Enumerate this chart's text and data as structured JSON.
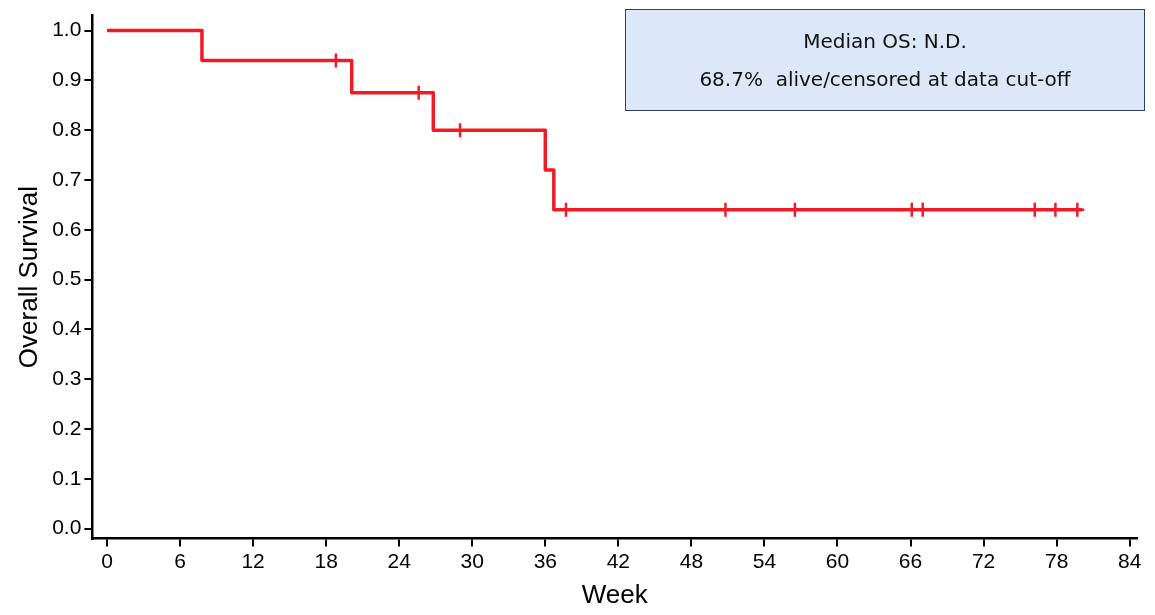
{
  "chart_data": {
    "type": "step",
    "xlabel": "Week",
    "ylabel": "Overall Survival",
    "annotations": [
      "Median OS: N.D.",
      "68.7%  alive/censored at data cut-off"
    ],
    "xlim": [
      -1.2,
      84.6
    ],
    "xticks": [
      0,
      6,
      12,
      18,
      24,
      30,
      36,
      42,
      48,
      54,
      60,
      66,
      72,
      78,
      84
    ],
    "ylim": [
      -0.02,
      1.03
    ],
    "yticks": [
      {
        "value": 0,
        "label": "0.0"
      },
      {
        "value": 0.1,
        "label": "0.1"
      },
      {
        "value": 0.2,
        "label": "0.2"
      },
      {
        "value": 0.3,
        "label": "0.3"
      },
      {
        "value": 0.4,
        "label": "0.4"
      },
      {
        "value": 0.5,
        "label": "0.5"
      },
      {
        "value": 0.6,
        "label": "0.6"
      },
      {
        "value": 0.7,
        "label": "0.7"
      },
      {
        "value": 0.8,
        "label": "0.8"
      },
      {
        "value": 0.9,
        "label": "0.9"
      },
      {
        "value": 1,
        "label": "1.0"
      }
    ],
    "grid": false,
    "legend": false,
    "series": [
      {
        "color": "#ee1c25",
        "x": [
          0,
          7.8,
          20.1,
          26.8,
          36.0,
          36.7,
          80.1
        ],
        "values": [
          1.0,
          0.94,
          0.875,
          0.8,
          0.72,
          0.64,
          0.64
        ]
      },
      {
        "type": "scatter",
        "marker": "cross",
        "color": "#ee1c25",
        "x": [
          18.8,
          25.6,
          29.0,
          37.7,
          50.8,
          56.5,
          66.1,
          67.0,
          76.2,
          77.9,
          79.7
        ],
        "values": [
          0.94,
          0.875,
          0.8,
          0.64,
          0.64,
          0.64,
          0.64,
          0.64,
          0.64,
          0.64,
          0.64
        ]
      }
    ]
  }
}
